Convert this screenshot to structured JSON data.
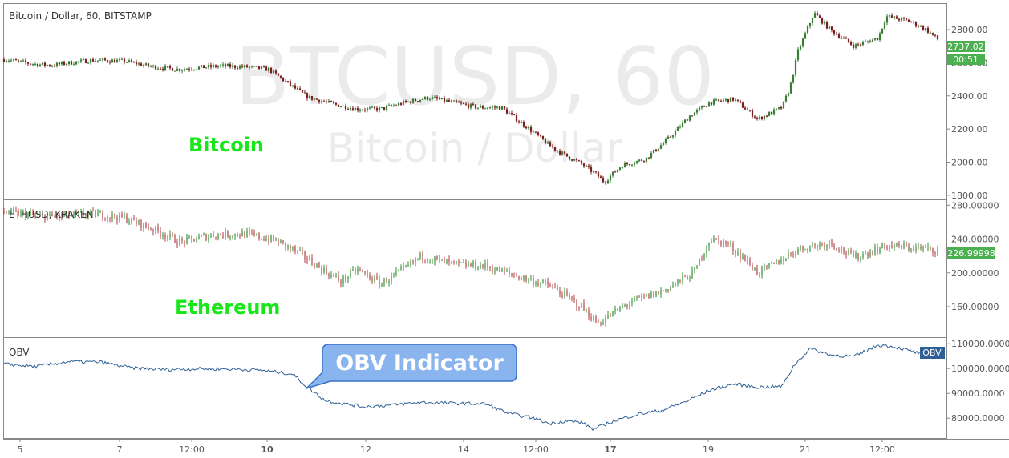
{
  "colors": {
    "up": "#3a7d35",
    "down": "#7a1f1f",
    "eth_up": "#2e8b2e",
    "eth_down": "#b04040",
    "obv_line": "#2e5f97",
    "price_tag": "#4caf50",
    "obv_tag": "#2e5f97",
    "label_green": "#19e619",
    "callout_fill": "#8ab4ee",
    "callout_stroke": "#3a73c9",
    "axis": "#888888"
  },
  "panes": {
    "btc": {
      "symbol": "Bitcoin / Dollar, 60, BITSTAMP",
      "watermark_main": "BTCUSD, 60",
      "watermark_sub": "Bitcoin / Dollar",
      "label": "Bitcoin",
      "last_price": "2737.02",
      "countdown": "00:51"
    },
    "eth": {
      "symbol": "ETHUSD, KRAKEN",
      "label": "Ethereum",
      "last_price": "226.99998"
    },
    "obv": {
      "symbol": "OBV",
      "tag": "OBV",
      "callout": "OBV Indicator"
    }
  },
  "chart_data": [
    {
      "type": "candlestick",
      "title": "Bitcoin / Dollar, 60, BITSTAMP",
      "series_label": "Bitcoin",
      "ylim": [
        1780,
        2950
      ],
      "yticks": [
        "1800.00",
        "2000.00",
        "2200.00",
        "2400.00",
        "2600.00",
        "2800.00"
      ],
      "last_value": 2737.02,
      "x_index": [
        0,
        40,
        60,
        90,
        110,
        150,
        180,
        215,
        240,
        270,
        300,
        330,
        370,
        380,
        410,
        440,
        470,
        500,
        530,
        560,
        590,
        620,
        650,
        680,
        700,
        720,
        740,
        748,
        770,
        800,
        830,
        855,
        880,
        910,
        940,
        970,
        980,
        990,
        1010,
        1030,
        1060,
        1090,
        1100,
        1130,
        1150,
        1165
      ],
      "close": [
        2620,
        2590,
        2585,
        2605,
        2615,
        2610,
        2580,
        2560,
        2570,
        2580,
        2575,
        2560,
        2420,
        2390,
        2350,
        2320,
        2320,
        2360,
        2390,
        2360,
        2330,
        2330,
        2220,
        2100,
        2040,
        1990,
        1920,
        1880,
        1980,
        2020,
        2150,
        2280,
        2360,
        2380,
        2260,
        2330,
        2450,
        2670,
        2900,
        2800,
        2700,
        2750,
        2880,
        2850,
        2800,
        2737
      ]
    },
    {
      "type": "candlestick",
      "title": "ETHUSD, KRAKEN",
      "series_label": "Ethereum",
      "ylim": [
        125,
        285
      ],
      "yticks": [
        "160.00000",
        "200.00000",
        "240.00000",
        "280.00000"
      ],
      "last_value": 226.99998,
      "x_index": [
        0,
        60,
        110,
        150,
        190,
        220,
        260,
        300,
        340,
        370,
        400,
        420,
        440,
        470,
        500,
        520,
        560,
        600,
        640,
        680,
        720,
        740,
        780,
        820,
        860,
        880,
        900,
        920,
        940,
        960,
        990,
        1030,
        1060,
        1100,
        1130,
        1165
      ],
      "close": [
        272,
        266,
        270,
        265,
        250,
        236,
        245,
        246,
        238,
        222,
        202,
        190,
        204,
        187,
        205,
        220,
        210,
        208,
        196,
        185,
        160,
        140,
        165,
        178,
        200,
        240,
        235,
        220,
        200,
        210,
        228,
        236,
        218,
        232,
        230,
        227
      ]
    },
    {
      "type": "line",
      "title": "OBV",
      "series_label": "OBV",
      "ylim": [
        72000,
        112000
      ],
      "yticks": [
        "80000.0000",
        "90000.0000",
        "100000.0000",
        "110000.0000"
      ],
      "x_index": [
        0,
        40,
        80,
        120,
        160,
        200,
        240,
        280,
        320,
        360,
        380,
        400,
        420,
        450,
        480,
        520,
        560,
        600,
        630,
        660,
        680,
        700,
        720,
        735,
        760,
        790,
        820,
        850,
        880,
        910,
        940,
        970,
        985,
        1005,
        1030,
        1060,
        1090,
        1110,
        1145
      ],
      "values": [
        101800,
        100800,
        102800,
        102600,
        100200,
        99600,
        99900,
        99800,
        99400,
        97800,
        92000,
        87200,
        86000,
        84600,
        85200,
        86400,
        86000,
        85800,
        81800,
        80100,
        77800,
        78900,
        78300,
        75500,
        78900,
        81600,
        83100,
        86700,
        91300,
        93800,
        92500,
        92800,
        101300,
        108100,
        105500,
        104800,
        109500,
        108800,
        105800
      ]
    }
  ],
  "x_axis": {
    "ticks": [
      {
        "label": "5",
        "bold": false,
        "i": 20
      },
      {
        "label": "7",
        "bold": false,
        "i": 144
      },
      {
        "label": "12:00",
        "bold": false,
        "i": 234
      },
      {
        "label": "10",
        "bold": true,
        "i": 328
      },
      {
        "label": "12",
        "bold": false,
        "i": 451
      },
      {
        "label": "14",
        "bold": false,
        "i": 573
      },
      {
        "label": "12:00",
        "bold": false,
        "i": 663
      },
      {
        "label": "17",
        "bold": true,
        "i": 756
      },
      {
        "label": "19",
        "bold": false,
        "i": 878
      },
      {
        "label": "21",
        "bold": false,
        "i": 999
      },
      {
        "label": "12:00",
        "bold": false,
        "i": 1095
      }
    ]
  }
}
